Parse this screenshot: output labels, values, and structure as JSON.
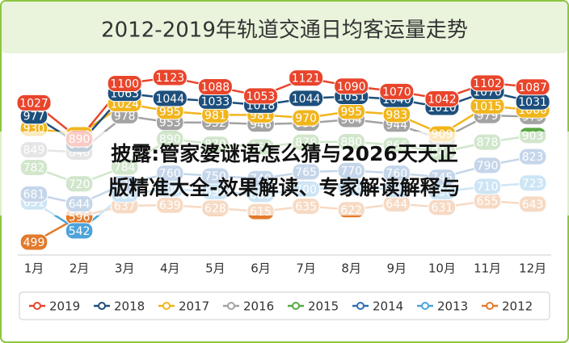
{
  "chart_data": {
    "type": "line",
    "title": "2012-2019年轨道交通日均客运量走势",
    "categories": [
      "1月",
      "2月",
      "3月",
      "4月",
      "5月",
      "6月",
      "7月",
      "8月",
      "9月",
      "10月",
      "11月",
      "12月"
    ],
    "series": [
      {
        "name": "2019",
        "color": "#e8452c",
        "values": [
          1027,
          890,
          1100,
          1123,
          1088,
          1053,
          1121,
          1090,
          1070,
          1042,
          1102,
          1087
        ]
      },
      {
        "name": "2018",
        "color": "#1d4f7c",
        "values": [
          977,
          870,
          1063,
          1044,
          1033,
          1018,
          1044,
          1051,
          1040,
          1010,
          1070,
          1031
        ]
      },
      {
        "name": "2017",
        "color": "#f1b51c",
        "values": [
          930,
          906,
          1024,
          995,
          981,
          981,
          970,
          995,
          983,
          909,
          1015,
          1000
        ]
      },
      {
        "name": "2016",
        "color": "#a3a3a3",
        "values": [
          849,
          840,
          978,
          953,
          952,
          946,
          950,
          964,
          944,
          890,
          979,
          975
        ]
      },
      {
        "name": "2015",
        "color": "#5aa744",
        "values": [
          782,
          720,
          784,
          890,
          870,
          860,
          878,
          880,
          866,
          840,
          878,
          903
        ]
      },
      {
        "name": "2014",
        "color": "#2f6db3",
        "values": [
          681,
          644,
          720,
          760,
          750,
          740,
          765,
          770,
          760,
          745,
          790,
          823
        ]
      },
      {
        "name": "2013",
        "color": "#4da3da",
        "values": [
          651,
          542,
          680,
          700,
          690,
          680,
          700,
          706,
          698,
          690,
          710,
          723
        ]
      },
      {
        "name": "2012",
        "color": "#e27a2c",
        "values": [
          499,
          596,
          637,
          639,
          628,
          615,
          635,
          622,
          644,
          631,
          655,
          643
        ]
      }
    ]
  },
  "overlay": {
    "lines": [
      "披露:管家婆谜语怎么猜与2026天天正",
      "版精准大全-效果解读、专家解读解释与"
    ]
  }
}
